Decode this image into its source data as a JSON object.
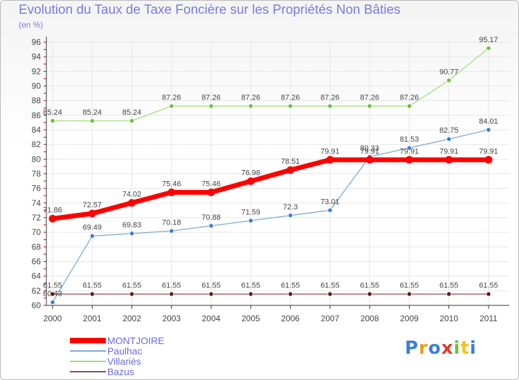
{
  "header": {
    "title": "Evolution du Taux de Taxe Foncière sur les Propriétés Non Bâties",
    "subtitle": "(en %)"
  },
  "logo": {
    "text": "Proxiti",
    "colors": [
      "#3a7fd6",
      "#f29a1a",
      "#3a7fd6",
      "#e23a2a",
      "#6cc23a",
      "#f2c21a",
      "#3a7fd6"
    ]
  },
  "colors": {
    "axis": "#333333",
    "grid": "#e6e6e6",
    "label": "#444444",
    "tick_red": "#cc0000"
  },
  "chart_data": {
    "type": "line",
    "x": [
      "2000",
      "2001",
      "2002",
      "2003",
      "2004",
      "2005",
      "2006",
      "2007",
      "2008",
      "2009",
      "2010",
      "2011"
    ],
    "ylim": [
      60,
      96
    ],
    "yticks": [
      60,
      62,
      64,
      66,
      68,
      70,
      72,
      74,
      76,
      78,
      80,
      82,
      84,
      86,
      88,
      90,
      92,
      94,
      96
    ],
    "grid": true,
    "legend_position": "bottom-left",
    "series": [
      {
        "name": "MONTJOIRE",
        "color": "#ff0000",
        "marker": "#ff0000",
        "width": 7,
        "values": [
          71.86,
          72.57,
          74.02,
          75.46,
          75.46,
          76.98,
          78.51,
          79.91,
          79.91,
          79.91,
          79.91,
          79.91
        ],
        "labels": [
          "71.86",
          "72.57",
          "74.02",
          "75.46",
          "75.46",
          "76.98",
          "78.51",
          "79.91",
          "79.91",
          "79.91",
          "79.91",
          "79.91"
        ]
      },
      {
        "name": "Paulhac",
        "color": "#7aaad8",
        "marker": "#3a7fd0",
        "width": 1.3,
        "values": [
          60.43,
          69.49,
          69.83,
          70.18,
          70.88,
          71.59,
          72.3,
          73.01,
          80.33,
          81.53,
          82.75,
          84.01
        ],
        "labels": [
          "60.43",
          "69.49",
          "69.83",
          "70.18",
          "70.88",
          "71.59",
          "72.3",
          "73.01",
          "80.33",
          "81.53",
          "82.75",
          "84.01"
        ]
      },
      {
        "name": "Villariès",
        "color": "#9ee07a",
        "marker": "#6cc23a",
        "width": 1.3,
        "values": [
          85.24,
          85.24,
          85.24,
          87.26,
          87.26,
          87.26,
          87.26,
          87.26,
          87.26,
          87.26,
          90.77,
          95.17
        ],
        "labels": [
          "85.24",
          "85.24",
          "85.24",
          "87.26",
          "87.26",
          "87.26",
          "87.26",
          "87.26",
          "87.26",
          "87.26",
          "90.77",
          "95.17"
        ]
      },
      {
        "name": "Bazus",
        "color": "#8a4a4a",
        "marker": "#6a1a1a",
        "width": 1.3,
        "values": [
          61.55,
          61.55,
          61.55,
          61.55,
          61.55,
          61.55,
          61.55,
          61.55,
          61.55,
          61.55,
          61.55,
          61.55
        ],
        "labels": [
          "61.55",
          "61.55",
          "61.55",
          "61.55",
          "61.55",
          "61.55",
          "61.55",
          "61.55",
          "61.55",
          "61.55",
          "61.55",
          "61.55"
        ]
      }
    ]
  }
}
